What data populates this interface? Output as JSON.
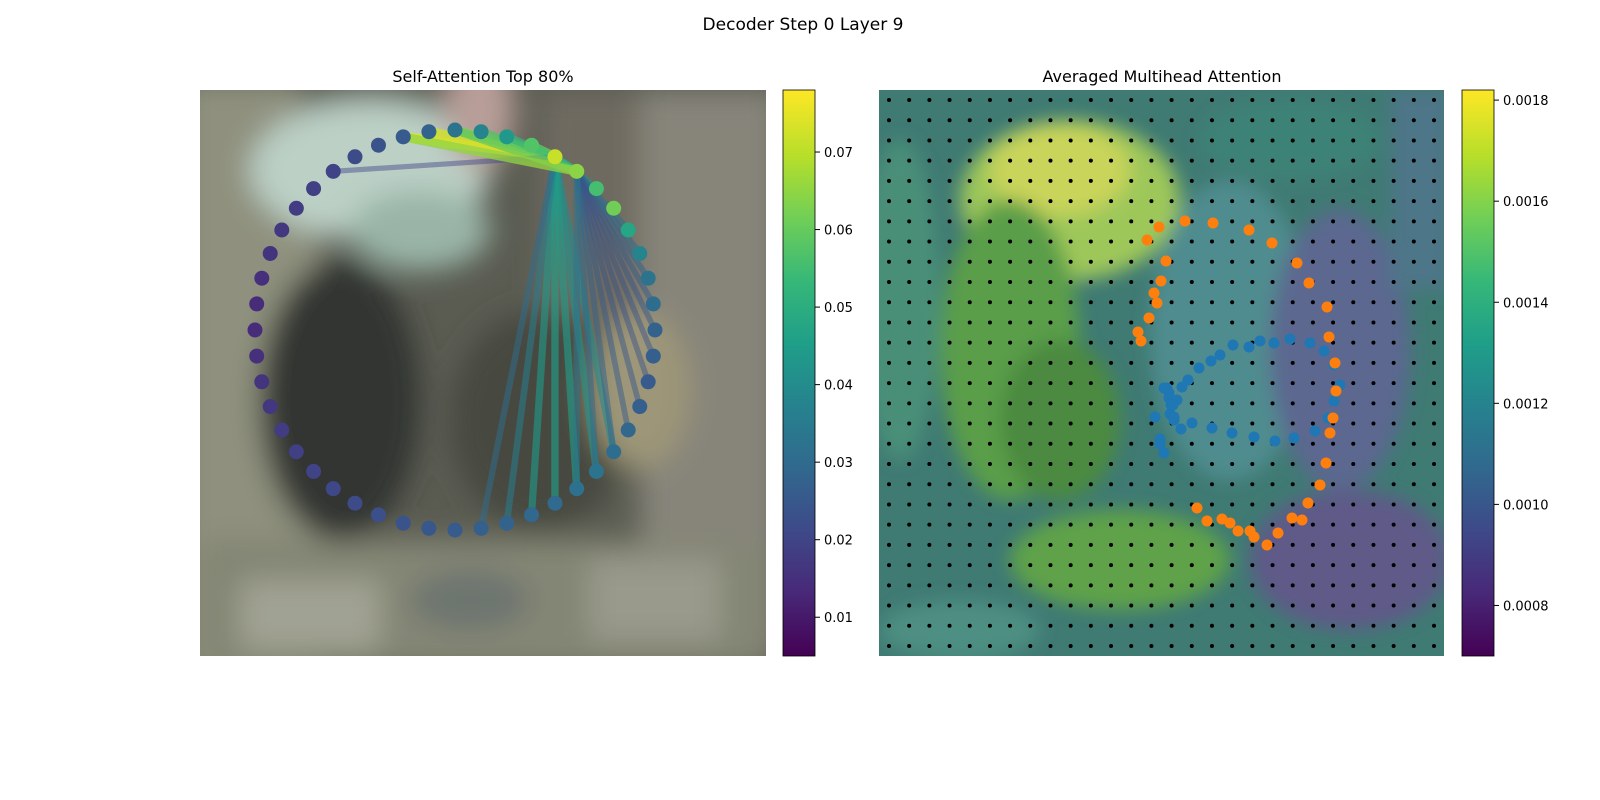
{
  "figure": {
    "title": "Decoder Step 0 Layer 9"
  },
  "colors": {
    "viridis": [
      "#440154",
      "#482878",
      "#3e4989",
      "#31688e",
      "#26828e",
      "#1f9e89",
      "#35b779",
      "#6ece58",
      "#b5de2b",
      "#fde725"
    ],
    "blue_points": "#1f77b4",
    "orange_points": "#ff7f0e",
    "grid_points": "#000000"
  },
  "chart_data": [
    {
      "type": "scatter",
      "title": "Self-Attention Top 80%",
      "colorbar": {
        "vmin": 0.005,
        "vmax": 0.078,
        "ticks": [
          "0.01",
          "0.02",
          "0.03",
          "0.04",
          "0.05",
          "0.06",
          "0.07"
        ]
      },
      "contour_center": [
        255,
        240
      ],
      "contour_radius": 200,
      "point_values": [
        0.072,
        0.065,
        0.056,
        0.062,
        0.048,
        0.038,
        0.033,
        0.031,
        0.028,
        0.027,
        0.026,
        0.027,
        0.029,
        0.031,
        0.033,
        0.032,
        0.03,
        0.029,
        0.028,
        0.027,
        0.026,
        0.025,
        0.024,
        0.023,
        0.022,
        0.021,
        0.02,
        0.019,
        0.018,
        0.017,
        0.016,
        0.015,
        0.014,
        0.014,
        0.015,
        0.016,
        0.017,
        0.018,
        0.019,
        0.02,
        0.022,
        0.024,
        0.026,
        0.028,
        0.033,
        0.038,
        0.044,
        0.058
      ],
      "attention_edges": [
        {
          "from": 0,
          "to": 42,
          "value": 0.075
        },
        {
          "from": 0,
          "to": 43,
          "value": 0.073
        },
        {
          "from": 0,
          "to": 44,
          "value": 0.064
        },
        {
          "from": 0,
          "to": 45,
          "value": 0.058
        },
        {
          "from": 0,
          "to": 46,
          "value": 0.054
        },
        {
          "from": 0,
          "to": 47,
          "value": 0.062
        },
        {
          "from": 0,
          "to": 1,
          "value": 0.048
        },
        {
          "from": 0,
          "to": 2,
          "value": 0.042
        },
        {
          "from": 0,
          "to": 13,
          "value": 0.04
        },
        {
          "from": 0,
          "to": 14,
          "value": 0.042
        },
        {
          "from": 0,
          "to": 15,
          "value": 0.045
        },
        {
          "from": 0,
          "to": 16,
          "value": 0.046
        },
        {
          "from": 0,
          "to": 17,
          "value": 0.044
        },
        {
          "from": 0,
          "to": 18,
          "value": 0.036
        },
        {
          "from": 0,
          "to": 19,
          "value": 0.031
        },
        {
          "from": 0,
          "to": 39,
          "value": 0.02
        },
        {
          "from": 1,
          "to": 4,
          "value": 0.032
        },
        {
          "from": 1,
          "to": 5,
          "value": 0.03
        },
        {
          "from": 1,
          "to": 6,
          "value": 0.028
        },
        {
          "from": 1,
          "to": 7,
          "value": 0.026
        },
        {
          "from": 1,
          "to": 8,
          "value": 0.025
        },
        {
          "from": 1,
          "to": 9,
          "value": 0.024
        },
        {
          "from": 1,
          "to": 10,
          "value": 0.024
        },
        {
          "from": 1,
          "to": 11,
          "value": 0.025
        },
        {
          "from": 1,
          "to": 12,
          "value": 0.026
        },
        {
          "from": 1,
          "to": 13,
          "value": 0.028
        },
        {
          "from": 1,
          "to": 14,
          "value": 0.03
        },
        {
          "from": 1,
          "to": 15,
          "value": 0.033
        },
        {
          "from": 1,
          "to": 47,
          "value": 0.055
        },
        {
          "from": 1,
          "to": 44,
          "value": 0.06
        },
        {
          "from": 1,
          "to": 42,
          "value": 0.066
        }
      ]
    },
    {
      "type": "heatmap",
      "title": "Averaged Multihead Attention",
      "colorbar": {
        "vmin": 0.0007,
        "vmax": 0.00182,
        "ticks": [
          "0.0008",
          "0.0010",
          "0.0012",
          "0.0014",
          "0.0016",
          "0.0018"
        ]
      },
      "grid_size": 28,
      "series": [
        {
          "points": [
            [
              5,
              15
            ],
            [
              2,
              15
            ],
            [
              7,
              20
            ],
            [
              7,
              25
            ],
            [
              9,
              32
            ],
            [
              8,
              41
            ],
            [
              12,
              47
            ],
            [
              19,
              56
            ],
            [
              30,
              50
            ],
            [
              50,
              55
            ],
            [
              70,
              60
            ],
            [
              92,
              64
            ],
            [
              113,
              68
            ],
            [
              132,
              65
            ],
            [
              153,
              58
            ],
            [
              166,
              45
            ],
            [
              172,
              28
            ],
            [
              178,
              12
            ],
            [
              172,
              -8
            ],
            [
              162,
              -22
            ],
            [
              148,
              -30
            ],
            [
              128,
              -34
            ],
            [
              112,
              -30
            ],
            [
              98,
              -32
            ],
            [
              87,
              -26
            ],
            [
              71,
              -28
            ],
            [
              58,
              -18
            ],
            [
              49,
              -12
            ],
            [
              37,
              -5
            ],
            [
              26,
              7
            ],
            [
              20,
              14
            ],
            [
              15,
              27
            ],
            [
              11,
              32
            ],
            [
              12,
              44
            ],
            [
              -7,
              44
            ],
            [
              -2,
              66
            ],
            [
              -2,
              71
            ],
            [
              2,
              80
            ]
          ]
        },
        {
          "points": [
            [
              -21,
              -32
            ],
            [
              -24,
              -41
            ],
            [
              -13,
              -55
            ],
            [
              -5,
              -70
            ],
            [
              -8,
              -80
            ],
            [
              -1,
              -92
            ],
            [
              4,
              -112
            ],
            [
              -15,
              -133
            ],
            [
              -3,
              -146
            ],
            [
              23,
              -152
            ],
            [
              51,
              -150
            ],
            [
              87,
              -143
            ],
            [
              110,
              -130
            ],
            [
              135,
              -110
            ],
            [
              147,
              -90
            ],
            [
              165,
              -66
            ],
            [
              167,
              -36
            ],
            [
              173,
              -10
            ],
            [
              174,
              18
            ],
            [
              171,
              45
            ],
            [
              168,
              60
            ],
            [
              164,
              90
            ],
            [
              158,
              112
            ],
            [
              146,
              130
            ],
            [
              140,
              147
            ],
            [
              130,
              145
            ],
            [
              116,
              160
            ],
            [
              105,
              172
            ],
            [
              92,
              164
            ],
            [
              88,
              158
            ],
            [
              76,
              158
            ],
            [
              68,
              150
            ],
            [
              60,
              146
            ],
            [
              45,
              148
            ],
            [
              35,
              135
            ]
          ]
        }
      ]
    }
  ]
}
